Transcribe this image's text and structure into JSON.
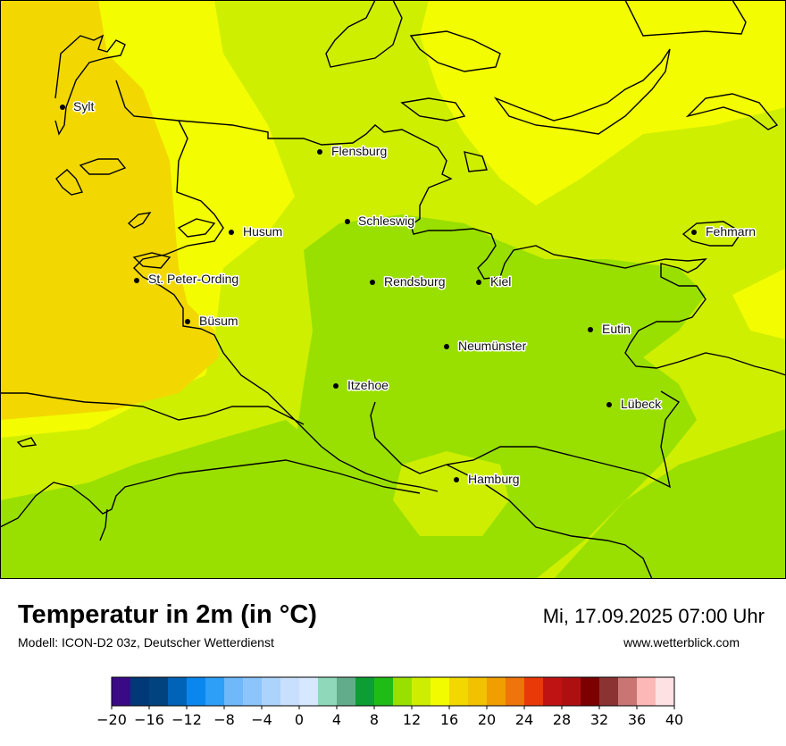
{
  "map": {
    "cities": [
      {
        "name": "Sylt"
      },
      {
        "name": "Flensburg"
      },
      {
        "name": "Schleswig"
      },
      {
        "name": "Husum"
      },
      {
        "name": "Fehmarn"
      },
      {
        "name": "St. Peter-Ording"
      },
      {
        "name": "Rendsburg"
      },
      {
        "name": "Kiel"
      },
      {
        "name": "Büsum"
      },
      {
        "name": "Eutin"
      },
      {
        "name": "Neumünster"
      },
      {
        "name": "Itzehoe"
      },
      {
        "name": "Lübeck"
      },
      {
        "name": "Hamburg"
      }
    ]
  },
  "footer": {
    "title": "Temperatur in 2m (in °C)",
    "subtitle": "Modell: ICON-D2 03z, Deutscher Wetterdienst",
    "datetime": "Mi, 17.09.2025 07:00 Uhr",
    "website": "www.wetterblick.com"
  },
  "legend": {
    "min": -20,
    "max": 40,
    "step": 2,
    "tick_labels": [
      "−20",
      "−16",
      "−12",
      "−8",
      "−4",
      "0",
      "4",
      "8",
      "12",
      "16",
      "20",
      "24",
      "28",
      "32",
      "36",
      "40"
    ],
    "colors": [
      "#3a0a86",
      "#013877",
      "#00437e",
      "#0063b8",
      "#0a87ef",
      "#2e9ff6",
      "#6fb9fb",
      "#8cc5fb",
      "#acd3fc",
      "#c8e0fd",
      "#d6e8fe",
      "#8fd8ba",
      "#63ac8b",
      "#0c9e33",
      "#1fbc16",
      "#98e000",
      "#cdee00",
      "#f3fb00",
      "#f2d700",
      "#f2c100",
      "#f09e00",
      "#ef740b",
      "#ea3908",
      "#be1312",
      "#ae1012",
      "#7c0000",
      "#8b3332",
      "#c97574",
      "#fcb8b6",
      "#fde1e3"
    ]
  }
}
